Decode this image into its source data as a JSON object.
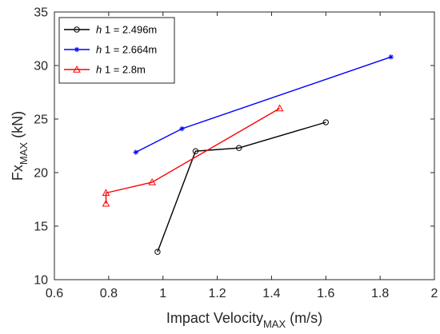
{
  "chart_data": {
    "type": "line",
    "xlim": [
      0.6,
      2
    ],
    "ylim": [
      10,
      35
    ],
    "xticks": [
      "0.6",
      "0.8",
      "1",
      "1.2",
      "1.4",
      "1.6",
      "1.8",
      "2"
    ],
    "yticks": [
      "10",
      "15",
      "20",
      "25",
      "30",
      "35"
    ],
    "xlabel": {
      "main": "Impact Velocity",
      "sub": "MAX",
      "unit": " (m/s)"
    },
    "ylabel": {
      "main": "Fx",
      "sub": "MAX",
      "unit": " (kN)"
    },
    "grid": false,
    "legend_position": "top-left",
    "series": [
      {
        "name_italic": "h",
        "name_rest": " 1 = 2.496m",
        "color": "#000000",
        "marker": "circle",
        "x": [
          0.98,
          1.12,
          1.28,
          1.6
        ],
        "y": [
          12.6,
          22.0,
          22.3,
          24.7
        ]
      },
      {
        "name_italic": "h",
        "name_rest": " 1 = 2.664m",
        "color": "#0000ff",
        "marker": "asterisk",
        "x": [
          0.9,
          1.07,
          1.84
        ],
        "y": [
          21.9,
          24.1,
          30.8
        ]
      },
      {
        "name_italic": "h",
        "name_rest": " 1 = 2.8m",
        "color": "#ff0000",
        "marker": "triangle",
        "x": [
          0.79,
          0.79,
          0.96,
          1.43
        ],
        "y": [
          17.1,
          18.1,
          19.1,
          26.0
        ]
      }
    ]
  }
}
